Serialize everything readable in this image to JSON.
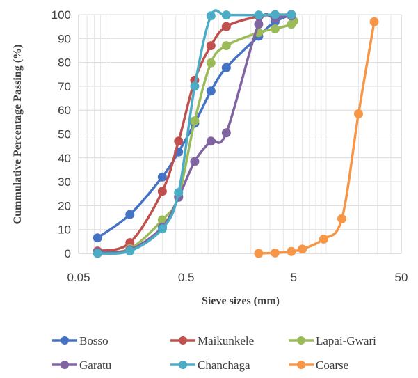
{
  "chart_data": {
    "type": "line",
    "xlabel": "Sieve sizes (mm)",
    "ylabel": "Cummulative Percentage Passing (%)",
    "x_scale": "log",
    "xlim": [
      0.05,
      50
    ],
    "ylim": [
      0,
      100
    ],
    "x_ticks": [
      0.05,
      0.5,
      5,
      50
    ],
    "x_tick_labels": [
      "0.05",
      "0.5",
      "5",
      "50"
    ],
    "y_ticks": [
      0,
      10,
      20,
      30,
      40,
      50,
      60,
      70,
      80,
      90,
      100
    ],
    "y_tick_labels": [
      "0",
      "10",
      "20",
      "30",
      "40",
      "50",
      "60",
      "70",
      "80",
      "90",
      "100"
    ],
    "grid": true,
    "legend_position": "bottom",
    "series": [
      {
        "name": "Bosso",
        "color": "#4472C4",
        "points": [
          [
            0.075,
            6.5
          ],
          [
            0.15,
            16.3
          ],
          [
            0.3,
            32
          ],
          [
            0.425,
            42.5
          ],
          [
            0.6,
            54.5
          ],
          [
            0.85,
            68
          ],
          [
            1.18,
            77.8
          ],
          [
            2.36,
            91
          ],
          [
            3.35,
            97
          ],
          [
            4.75,
            100
          ]
        ]
      },
      {
        "name": "Maikunkele",
        "color": "#C0504D",
        "points": [
          [
            0.075,
            1
          ],
          [
            0.15,
            4.5
          ],
          [
            0.3,
            26
          ],
          [
            0.425,
            47
          ],
          [
            0.6,
            72.5
          ],
          [
            0.85,
            87
          ],
          [
            1.18,
            95
          ],
          [
            2.36,
            99.3
          ],
          [
            3.35,
            99.8
          ],
          [
            4.75,
            100
          ]
        ]
      },
      {
        "name": "Lapai-Gwari",
        "color": "#9BBB59",
        "points": [
          [
            0.075,
            0.5
          ],
          [
            0.15,
            2
          ],
          [
            0.3,
            14
          ],
          [
            0.425,
            24
          ],
          [
            0.6,
            55.5
          ],
          [
            0.85,
            79.8
          ],
          [
            1.18,
            87
          ],
          [
            2.36,
            92.5
          ],
          [
            3.35,
            94
          ],
          [
            4.75,
            96
          ],
          [
            5,
            97.3
          ]
        ]
      },
      {
        "name": "Garatu",
        "color": "#8064A2",
        "points": [
          [
            0.075,
            0.5
          ],
          [
            0.15,
            1.5
          ],
          [
            0.3,
            11
          ],
          [
            0.425,
            23.5
          ],
          [
            0.6,
            38.5
          ],
          [
            0.85,
            47
          ],
          [
            1.18,
            50.5
          ],
          [
            2.36,
            96
          ],
          [
            3.35,
            98.5
          ],
          [
            4.75,
            99.5
          ]
        ]
      },
      {
        "name": "Chanchaga",
        "color": "#4BACC6",
        "points": [
          [
            0.075,
            0
          ],
          [
            0.15,
            1
          ],
          [
            0.3,
            10.3
          ],
          [
            0.425,
            25.5
          ],
          [
            0.6,
            70
          ],
          [
            0.85,
            99.5
          ],
          [
            1.18,
            99.8
          ],
          [
            2.36,
            99.8
          ],
          [
            3.35,
            100
          ],
          [
            4.75,
            100
          ]
        ]
      },
      {
        "name": "Coarse",
        "color": "#F79646",
        "points": [
          [
            2.36,
            0
          ],
          [
            3.35,
            0.2
          ],
          [
            4.75,
            0.8
          ],
          [
            6,
            1.8
          ],
          [
            9.5,
            6
          ],
          [
            14,
            14.5
          ],
          [
            20,
            58.5
          ],
          [
            28,
            97
          ]
        ]
      }
    ]
  }
}
